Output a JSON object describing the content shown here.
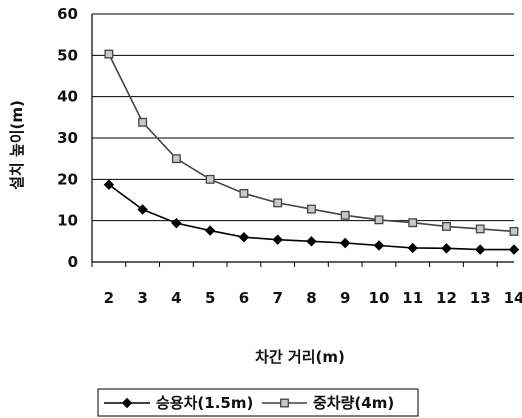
{
  "chart_data": {
    "type": "line",
    "x": [
      2,
      3,
      4,
      5,
      6,
      7,
      8,
      9,
      10,
      11,
      12,
      13,
      14
    ],
    "xlabel": "차간 거리(m)",
    "ylabel": "설치 높이(m)",
    "ylim": [
      0,
      60
    ],
    "yticks": [
      0,
      10,
      20,
      30,
      40,
      50,
      60
    ],
    "grid": "horizontal",
    "legend_position": "bottom",
    "series": [
      {
        "name": "승용차(1.5m)",
        "marker": "diamond",
        "color": "#000000",
        "values": [
          18.7,
          12.7,
          9.4,
          7.6,
          6.0,
          5.4,
          5.0,
          4.6,
          4.0,
          3.4,
          3.3,
          3.0,
          3.0
        ]
      },
      {
        "name": "중차량(4m)",
        "marker": "square",
        "color": "#444444",
        "values": [
          50.3,
          33.8,
          25.0,
          20.0,
          16.6,
          14.3,
          12.8,
          11.3,
          10.2,
          9.5,
          8.6,
          8.0,
          7.4
        ]
      }
    ]
  }
}
